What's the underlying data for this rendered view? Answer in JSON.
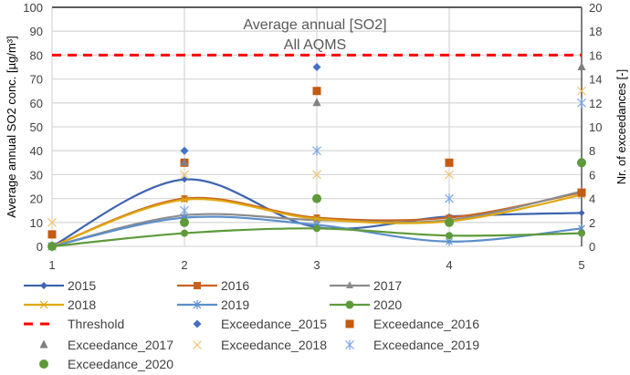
{
  "chart_data": {
    "type": "line",
    "title": [
      "Average annual [SO2]",
      "All AQMS"
    ],
    "xlabel": "",
    "ylabel": "Average  annual SO2 conc. [µg/m³]",
    "y2label": "Nr. of exceedances [-]",
    "x": [
      1,
      2,
      3,
      4,
      5
    ],
    "xlim": [
      1,
      5
    ],
    "ylim": [
      0,
      100
    ],
    "y2lim": [
      0,
      20
    ],
    "yticks": [
      0,
      10,
      20,
      30,
      40,
      50,
      60,
      70,
      80,
      90,
      100
    ],
    "y2ticks": [
      0,
      2,
      4,
      6,
      8,
      10,
      12,
      14,
      16,
      18,
      20
    ],
    "grid": true,
    "legend_position": "bottom",
    "threshold": {
      "name": "Threshold",
      "value": 80,
      "color": "#FF0000"
    },
    "series": [
      {
        "name": "2015",
        "color": "#3E64B0",
        "marker": "diamond",
        "values": [
          0,
          28,
          8,
          12.5,
          14
        ]
      },
      {
        "name": "2016",
        "color": "#C8641E",
        "marker": "square",
        "values": [
          0,
          20,
          12,
          12,
          22.5
        ]
      },
      {
        "name": "2017",
        "color": "#8C8C8C",
        "marker": "triangle",
        "values": [
          0,
          13,
          11,
          11,
          23
        ]
      },
      {
        "name": "2018",
        "color": "#E0A810",
        "marker": "x",
        "values": [
          0,
          19.5,
          11.5,
          10.5,
          21.5
        ]
      },
      {
        "name": "2019",
        "color": "#5B8FCB",
        "marker": "star",
        "values": [
          0,
          12,
          9,
          2,
          7.5
        ]
      },
      {
        "name": "2020",
        "color": "#5E9A3A",
        "marker": "circle",
        "values": [
          0,
          5.5,
          7.5,
          4.5,
          5.5
        ]
      }
    ],
    "exceedance_series": [
      {
        "name": "Exceedance_2015",
        "color": "#4472C4",
        "marker": "diamond",
        "values": [
          0,
          8,
          15,
          7,
          null
        ]
      },
      {
        "name": "Exceedance_2016",
        "color": "#C55A11",
        "marker": "square",
        "values": [
          1,
          7,
          13,
          7,
          4.5
        ]
      },
      {
        "name": "Exceedance_2017",
        "color": "#808080",
        "marker": "triangle",
        "values": [
          null,
          7,
          12,
          null,
          15
        ]
      },
      {
        "name": "Exceedance_2018",
        "color": "#F2C46E",
        "marker": "x",
        "values": [
          2,
          6,
          6,
          6,
          13
        ]
      },
      {
        "name": "Exceedance_2019",
        "color": "#7EA6E6",
        "marker": "star",
        "values": [
          0,
          3,
          8,
          4,
          12
        ]
      },
      {
        "name": "Exceedance_2020",
        "color": "#5E9A3A",
        "marker": "circle",
        "values": [
          0,
          2,
          4,
          2,
          7
        ]
      }
    ]
  }
}
